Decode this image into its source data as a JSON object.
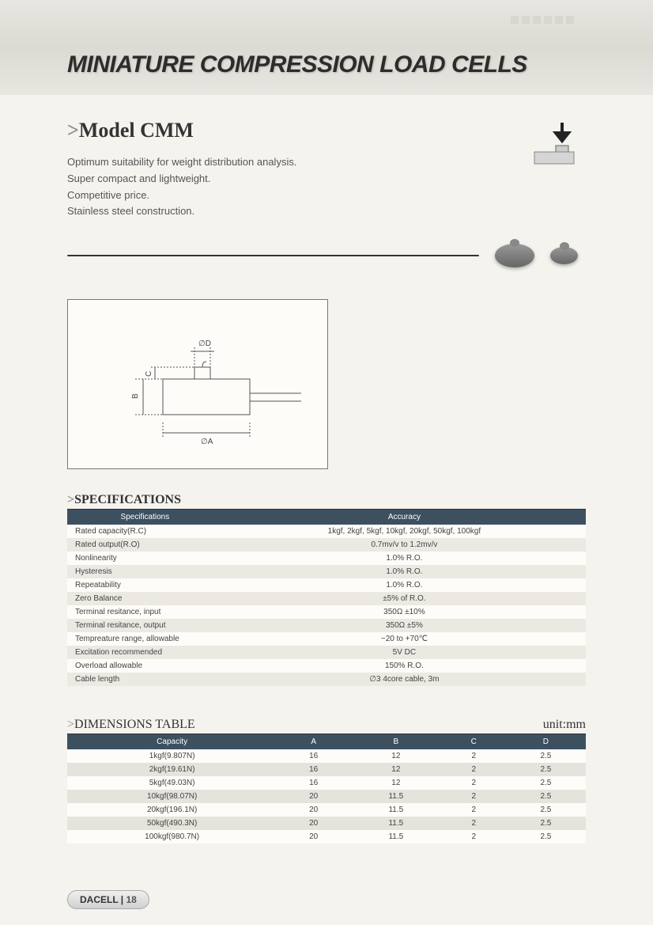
{
  "header": {
    "title": "MINIATURE COMPRESSION LOAD CELLS"
  },
  "model": {
    "prefix": ">",
    "name": "Model CMM",
    "desc_lines": [
      "Optimum suitability for weight distribution analysis.",
      "Super compact and lightweight.",
      "Competitive price.",
      "Stainless steel construction."
    ]
  },
  "drawing": {
    "labels": {
      "diameter_d": "∅D",
      "diameter_a": "∅A",
      "dim_b": "B",
      "dim_c": "C"
    }
  },
  "specifications": {
    "section_prefix": ">",
    "section_title": "SPECIFICATIONS",
    "headers": [
      "Specifications",
      "Accuracy"
    ],
    "rows": [
      {
        "label": "Rated capacity(R.C)",
        "value": "1kgf, 2kgf, 5kgf, 10kgf, 20kgf, 50kgf, 100kgf"
      },
      {
        "label": "Rated output(R.O)",
        "value": "0.7mv/v to 1.2mv/v"
      },
      {
        "label": "Nonlinearity",
        "value": "1.0% R.O."
      },
      {
        "label": "Hysteresis",
        "value": "1.0% R.O."
      },
      {
        "label": "Repeatability",
        "value": "1.0% R.O."
      },
      {
        "label": "Zero Balance",
        "value": "±5% of R.O."
      },
      {
        "label": "Terminal resitance, input",
        "value": "350Ω ±10%"
      },
      {
        "label": "Terminal resitance, output",
        "value": "350Ω ±5%"
      },
      {
        "label": "Tempreature range, allowable",
        "value": "−20 to +70℃"
      },
      {
        "label": "Excitation recommended",
        "value": "5V DC"
      },
      {
        "label": "Overload allowable",
        "value": "150% R.O."
      },
      {
        "label": "Cable length",
        "value": "∅3 4core cable, 3m"
      }
    ]
  },
  "dimensions": {
    "section_prefix": ">",
    "section_title": "DIMENSIONS TABLE",
    "unit": "unit:mm",
    "headers": [
      "Capacity",
      "A",
      "B",
      "C",
      "D"
    ],
    "rows": [
      {
        "capacity": "1kgf(9.807N)",
        "a": "16",
        "b": "12",
        "c": "2",
        "d": "2.5"
      },
      {
        "capacity": "2kgf(19.61N)",
        "a": "16",
        "b": "12",
        "c": "2",
        "d": "2.5"
      },
      {
        "capacity": "5kgf(49.03N)",
        "a": "16",
        "b": "12",
        "c": "2",
        "d": "2.5"
      },
      {
        "capacity": "10kgf(98.07N)",
        "a": "20",
        "b": "11.5",
        "c": "2",
        "d": "2.5"
      },
      {
        "capacity": "20kgf(196.1N)",
        "a": "20",
        "b": "11.5",
        "c": "2",
        "d": "2.5"
      },
      {
        "capacity": "50kgf(490.3N)",
        "a": "20",
        "b": "11.5",
        "c": "2",
        "d": "2.5"
      },
      {
        "capacity": "100kgf(980.7N)",
        "a": "20",
        "b": "11.5",
        "c": "2",
        "d": "2.5"
      }
    ]
  },
  "footer": {
    "brand": "DACELL",
    "separator": " | ",
    "page": "18"
  },
  "colors": {
    "table_header_bg": "#3c5060",
    "row_alt_bg": "#ebe9e2",
    "text_primary": "#333333",
    "text_secondary": "#555555"
  }
}
